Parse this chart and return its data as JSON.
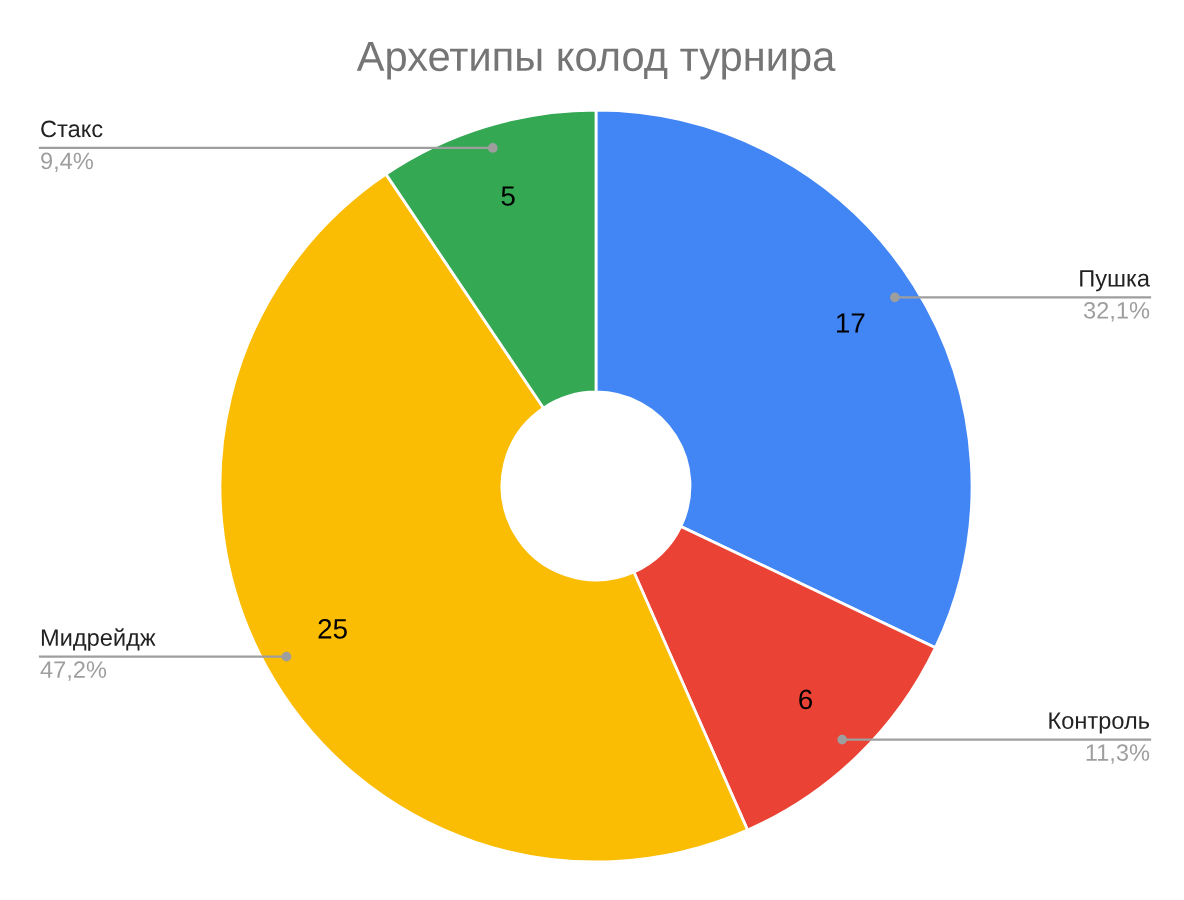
{
  "chart_data": {
    "type": "donut",
    "title": "Архетипы колод турнира",
    "categories": [
      "Пушка",
      "Контроль",
      "Мидрейдж",
      "Стакс"
    ],
    "values": [
      17,
      6,
      25,
      5
    ],
    "colors": [
      "#4285f4",
      "#ea4335",
      "#fbbc04",
      "#34a853"
    ],
    "data_labels": true,
    "annotations": [
      "32,1%",
      "11,3%",
      "47,2%",
      "9,4%"
    ],
    "legend": false
  }
}
